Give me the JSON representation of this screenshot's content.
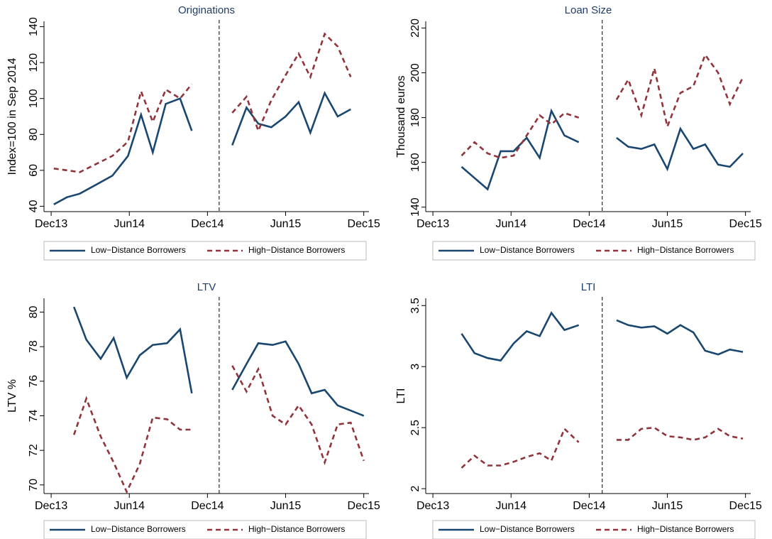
{
  "chart_data": [
    {
      "type": "line",
      "title": "Originations",
      "y_label": "Index=100 in Sep 2014",
      "x": [
        0.2,
        1.2,
        2.2,
        4.7,
        5.9,
        6.9,
        7.8,
        8.8,
        9.9,
        10.8,
        null,
        13.9,
        15.0,
        15.9,
        16.9,
        18.0,
        19.0,
        19.9,
        21.0,
        22.0,
        23.0
      ],
      "series": [
        {
          "name": "Low−Distance Borrowers",
          "color": "#1a476f",
          "dashed": false,
          "values": [
            41,
            45,
            47,
            57,
            68,
            91,
            70,
            97,
            100,
            82,
            null,
            74,
            95,
            86,
            84,
            90,
            98,
            81,
            103,
            90,
            94
          ]
        },
        {
          "name": "High−Distance Borrowers",
          "color": "#90353b",
          "dashed": true,
          "values": [
            61,
            60,
            59,
            68,
            76,
            104,
            87,
            105,
            100,
            108,
            null,
            92,
            101,
            82,
            99,
            113,
            125,
            112,
            136,
            129,
            112
          ]
        }
      ],
      "xlim": [
        -0.55,
        24.4
      ],
      "xticks": [
        {
          "value": 0,
          "label": "Dec13"
        },
        {
          "value": 6,
          "label": "Jun14"
        },
        {
          "value": 12,
          "label": "Dec14"
        },
        {
          "value": 18,
          "label": "Jun15"
        },
        {
          "value": 24,
          "label": "Dec15"
        }
      ],
      "ylim": [
        37,
        143
      ],
      "yticks": [
        40,
        60,
        80,
        100,
        120,
        140
      ],
      "vline": 12.9
    },
    {
      "type": "line",
      "title": "Loan Size",
      "y_label": "Thousand euros",
      "x": [
        2.2,
        3.2,
        4.2,
        5.2,
        6.2,
        7.2,
        8.2,
        9.1,
        10.1,
        11.2,
        null,
        14.1,
        15.0,
        16.0,
        17.0,
        18.0,
        19.0,
        20.0,
        20.9,
        21.9,
        22.8,
        23.8
      ],
      "series": [
        {
          "name": "Low−Distance Borrowers",
          "color": "#1a476f",
          "dashed": false,
          "values": [
            158,
            153,
            148,
            165,
            165,
            171,
            162,
            183,
            172,
            169,
            null,
            171,
            167,
            166,
            168,
            157,
            175,
            166,
            168,
            159,
            158,
            164
          ]
        },
        {
          "name": "High−Distance Borrowers",
          "color": "#90353b",
          "dashed": true,
          "values": [
            163,
            169,
            164,
            162,
            163,
            172,
            181,
            177,
            182,
            180,
            null,
            188,
            197,
            181,
            202,
            176,
            191,
            194,
            208,
            200,
            186,
            198
          ]
        }
      ],
      "xlim": [
        -0.55,
        24.4
      ],
      "xticks": [
        {
          "value": 0,
          "label": "Dec13"
        },
        {
          "value": 6,
          "label": "Jun14"
        },
        {
          "value": 12,
          "label": "Dec14"
        },
        {
          "value": 18,
          "label": "Jun15"
        },
        {
          "value": 24,
          "label": "Dec15"
        }
      ],
      "ylim": [
        138,
        223
      ],
      "yticks": [
        140,
        160,
        180,
        200,
        220
      ],
      "vline": 13
    },
    {
      "type": "line",
      "title": "LTV",
      "y_label": "LTV %",
      "x": [
        1.75,
        2.7,
        3.8,
        4.8,
        5.8,
        6.8,
        7.8,
        8.9,
        9.9,
        10.8,
        null,
        13.9,
        15.0,
        15.9,
        17.0,
        18.0,
        19.0,
        20.0,
        21.0,
        22.0,
        23.0,
        24.0
      ],
      "series": [
        {
          "name": "Low−Distance Borrowers",
          "color": "#1a476f",
          "dashed": false,
          "values": [
            80.3,
            78.4,
            77.3,
            78.5,
            76.2,
            77.5,
            78.1,
            78.2,
            79.0,
            75.3,
            null,
            75.5,
            77.0,
            78.2,
            78.1,
            78.3,
            77.0,
            75.3,
            75.5,
            74.6,
            74.3,
            74.0
          ]
        },
        {
          "name": "High−Distance Borrowers",
          "color": "#90353b",
          "dashed": true,
          "values": [
            72.9,
            75.0,
            72.8,
            71.3,
            69.6,
            71.2,
            73.9,
            73.8,
            73.2,
            73.2,
            null,
            76.9,
            75.4,
            76.7,
            74.0,
            73.5,
            74.6,
            73.5,
            71.3,
            73.5,
            73.6,
            71.4
          ]
        }
      ],
      "xlim": [
        -0.55,
        24.4
      ],
      "xticks": [
        {
          "value": 0,
          "label": "Dec13"
        },
        {
          "value": 6,
          "label": "Jun14"
        },
        {
          "value": 12,
          "label": "Dec14"
        },
        {
          "value": 18,
          "label": "Jun15"
        },
        {
          "value": 24,
          "label": "Dec15"
        }
      ],
      "ylim": [
        69.5,
        80.8
      ],
      "yticks": [
        70,
        72,
        74,
        76,
        78,
        80
      ],
      "vline": 12.9
    },
    {
      "type": "line",
      "title": "LTI",
      "y_label": "LTI",
      "x": [
        2.2,
        3.2,
        4.2,
        5.2,
        6.2,
        7.2,
        8.2,
        9.1,
        10.1,
        11.2,
        null,
        14.1,
        15.0,
        16.0,
        17.0,
        18.0,
        19.0,
        20.0,
        20.9,
        21.9,
        22.8,
        23.8
      ],
      "series": [
        {
          "name": "Low−Distance Borrowers",
          "color": "#1a476f",
          "dashed": false,
          "values": [
            3.27,
            3.11,
            3.07,
            3.05,
            3.19,
            3.29,
            3.25,
            3.44,
            3.3,
            3.34,
            null,
            3.38,
            3.34,
            3.32,
            3.33,
            3.27,
            3.34,
            3.28,
            3.13,
            3.1,
            3.14,
            3.12
          ]
        },
        {
          "name": "High−Distance Borrowers",
          "color": "#90353b",
          "dashed": true,
          "values": [
            2.17,
            2.27,
            2.19,
            2.19,
            2.22,
            2.26,
            2.29,
            2.23,
            2.49,
            2.38,
            null,
            2.4,
            2.4,
            2.49,
            2.5,
            2.43,
            2.42,
            2.4,
            2.42,
            2.49,
            2.43,
            2.41
          ]
        }
      ],
      "xlim": [
        -0.55,
        24.4
      ],
      "xticks": [
        {
          "value": 0,
          "label": "Dec13"
        },
        {
          "value": 6,
          "label": "Jun14"
        },
        {
          "value": 12,
          "label": "Dec14"
        },
        {
          "value": 18,
          "label": "Jun15"
        },
        {
          "value": 24,
          "label": "Dec15"
        }
      ],
      "ylim": [
        1.96,
        3.56
      ],
      "yticks": [
        2,
        2.5,
        3,
        3.5
      ],
      "vline": 13
    }
  ]
}
